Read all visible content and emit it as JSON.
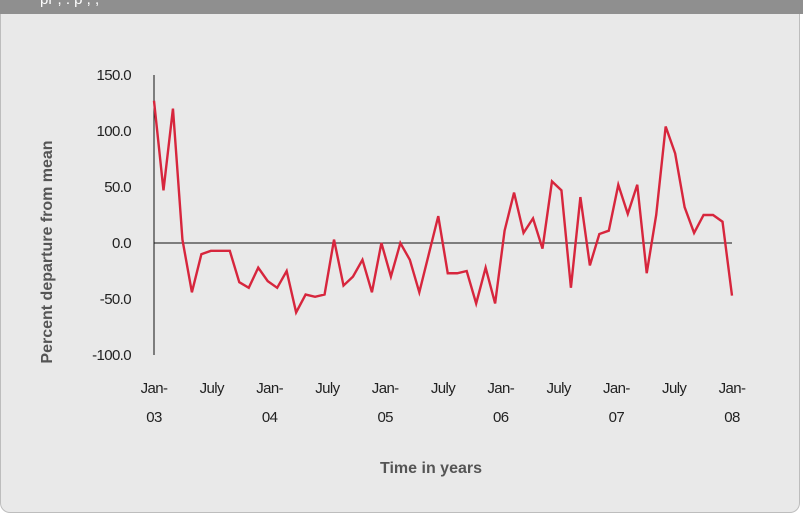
{
  "header": {
    "partial_text": "pr , . p , ,"
  },
  "chart_data": {
    "type": "line",
    "title": "",
    "xlabel": "Time  in years",
    "ylabel": "Percent departure  from mean",
    "ylim": [
      -100,
      150
    ],
    "yticks": [
      "150.0",
      "100.0",
      "50.0",
      "0.0",
      "-50.0",
      "-100.0"
    ],
    "x_tick_labels": [
      {
        "month": "Jan-",
        "year": "03"
      },
      {
        "month": "July",
        "year": ""
      },
      {
        "month": "Jan-",
        "year": "04"
      },
      {
        "month": "July",
        "year": ""
      },
      {
        "month": "Jan-",
        "year": "05"
      },
      {
        "month": "July",
        "year": ""
      },
      {
        "month": "Jan-",
        "year": "06"
      },
      {
        "month": "July",
        "year": ""
      },
      {
        "month": "Jan-",
        "year": "07"
      },
      {
        "month": "July",
        "year": ""
      },
      {
        "month": "Jan-",
        "year": "08"
      }
    ],
    "grid": false,
    "line_color": "#d7263d",
    "series": [
      {
        "values": [
          127,
          47,
          120,
          3,
          -44,
          -10,
          -7,
          -7,
          -7,
          -35,
          -40,
          -22,
          -34,
          -40,
          -25,
          -62,
          -46,
          -48,
          -46,
          3,
          -38,
          -30,
          -15,
          -44,
          0,
          -30,
          0,
          -15,
          -44,
          -10,
          24,
          -27,
          -27,
          -25,
          -54,
          -22,
          -54,
          11,
          45,
          9,
          22,
          -5,
          55,
          47,
          -40,
          41,
          -20,
          8,
          11,
          52,
          26,
          52,
          -27,
          25,
          104,
          80,
          32,
          9,
          25,
          25,
          19,
          -47
        ]
      }
    ]
  }
}
